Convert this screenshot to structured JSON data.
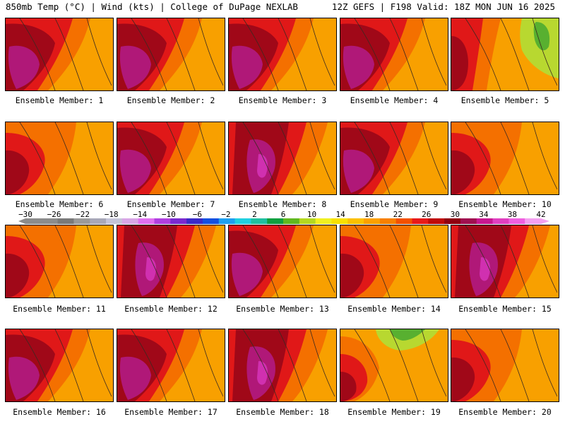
{
  "header": {
    "left": "850mb Temp (°C) | Wind (kts) | College of DuPage NEXLAB",
    "right": "12Z GEFS | F198 Valid: 18Z MON JUN 16 2025"
  },
  "colorbar": {
    "labels": [
      "−30",
      "−26",
      "−22",
      "−18",
      "−14",
      "−10",
      "−6",
      "−2",
      "2",
      "6",
      "10",
      "14",
      "18",
      "22",
      "26",
      "30",
      "34",
      "38",
      "42"
    ],
    "colors": [
      "#8c8c8c",
      "#8c8c8c",
      "#7a7a7a",
      "#9a9a9a",
      "#a8a8b8",
      "#c4c4d8",
      "#d8a6e6",
      "#e070f0",
      "#b040e0",
      "#7a2ad0",
      "#3a2ac8",
      "#1450e0",
      "#1ea0f0",
      "#20d0e0",
      "#20c0a0",
      "#10a040",
      "#60b820",
      "#b4d820",
      "#f0f020",
      "#f8e000",
      "#fcc000",
      "#fca000",
      "#f88000",
      "#f45000",
      "#e81a1a",
      "#c00a0a",
      "#900010",
      "#a01050",
      "#c81890",
      "#e040c0",
      "#f060e0",
      "#f4a0f0"
    ]
  },
  "palette": {
    "green": "#58b030",
    "lightgreen": "#b8d830",
    "orange": "#f8a000",
    "darkorange": "#f47000",
    "red": "#e01818",
    "darkred": "#a00818",
    "magenta": "#b01878",
    "pink": "#d030b0"
  },
  "panels": [
    {
      "label": "Ensemble Member: 1",
      "style": "hotwest"
    },
    {
      "label": "Ensemble Member: 2",
      "style": "hotwest"
    },
    {
      "label": "Ensemble Member: 3",
      "style": "hotwest"
    },
    {
      "label": "Ensemble Member: 4",
      "style": "hotwest"
    },
    {
      "label": "Ensemble Member: 5",
      "style": "coolnortheast"
    },
    {
      "label": "Ensemble Member: 6",
      "style": "mild"
    },
    {
      "label": "Ensemble Member: 7",
      "style": "hotwest"
    },
    {
      "label": "Ensemble Member: 8",
      "style": "hotcenter"
    },
    {
      "label": "Ensemble Member: 9",
      "style": "hotwest"
    },
    {
      "label": "Ensemble Member: 10",
      "style": "mild"
    },
    {
      "label": "Ensemble Member: 11",
      "style": "mild"
    },
    {
      "label": "Ensemble Member: 12",
      "style": "hotcenter"
    },
    {
      "label": "Ensemble Member: 13",
      "style": "hotwest"
    },
    {
      "label": "Ensemble Member: 14",
      "style": "mild"
    },
    {
      "label": "Ensemble Member: 15",
      "style": "hotcenter"
    },
    {
      "label": "Ensemble Member: 16",
      "style": "hotwest"
    },
    {
      "label": "Ensemble Member: 17",
      "style": "hotwest"
    },
    {
      "label": "Ensemble Member: 18",
      "style": "hotcenter"
    },
    {
      "label": "Ensemble Member: 19",
      "style": "coolnorth"
    },
    {
      "label": "Ensemble Member: 20",
      "style": "mild"
    }
  ]
}
